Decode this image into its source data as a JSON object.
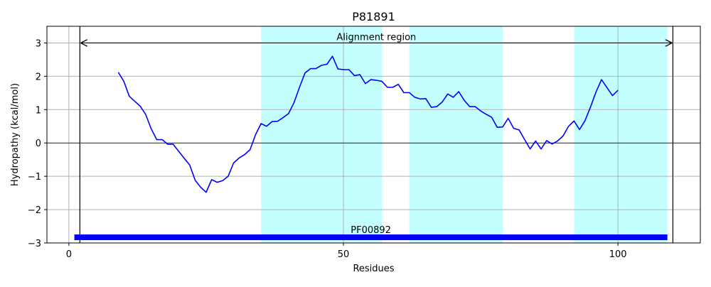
{
  "chart_data": {
    "type": "line",
    "title": "P81891",
    "xlabel": "Residues",
    "ylabel": "Hydropathy (kcal/mol)",
    "xlim": [
      -4,
      115
    ],
    "ylim": [
      -3,
      3.5
    ],
    "xticks": [
      0,
      50,
      100
    ],
    "yticks": [
      -3,
      -2,
      -1,
      0,
      1,
      2,
      3
    ],
    "grid": true,
    "colors": {
      "line": "#0000ff",
      "band": "#c4ffff",
      "domain_bar": "#0000ff",
      "grid": "#b0b0b0",
      "axis": "#000000"
    },
    "series": [
      {
        "x": [
          9,
          10,
          11,
          12,
          13,
          14,
          15,
          16,
          17,
          18,
          19,
          20,
          21,
          22,
          23,
          24,
          25,
          26,
          27,
          28,
          29,
          30,
          31,
          32,
          33,
          34,
          35,
          36,
          37,
          38,
          39,
          40,
          41,
          42,
          43,
          44,
          45,
          46,
          47,
          48,
          49,
          50,
          51,
          52,
          53,
          54,
          55,
          56,
          57,
          58,
          59,
          60,
          61,
          62,
          63,
          64,
          65,
          66,
          67,
          68,
          69,
          70,
          71,
          72,
          73,
          74,
          75,
          76,
          77,
          78,
          79,
          80,
          81,
          82,
          83,
          84,
          85,
          86,
          87,
          88,
          89,
          90,
          91,
          92,
          93,
          94,
          95,
          96,
          97,
          98,
          99,
          100
        ],
        "values": [
          2.12,
          1.85,
          1.4,
          1.25,
          1.1,
          0.85,
          0.42,
          0.1,
          0.1,
          -0.04,
          -0.04,
          -0.25,
          -0.46,
          -0.66,
          -1.12,
          -1.33,
          -1.48,
          -1.1,
          -1.18,
          -1.13,
          -1.0,
          -0.6,
          -0.45,
          -0.35,
          -0.2,
          0.25,
          0.58,
          0.5,
          0.64,
          0.65,
          0.76,
          0.88,
          1.21,
          1.67,
          2.1,
          2.23,
          2.23,
          2.33,
          2.36,
          2.6,
          2.22,
          2.2,
          2.2,
          2.02,
          2.05,
          1.78,
          1.9,
          1.88,
          1.85,
          1.67,
          1.67,
          1.76,
          1.51,
          1.51,
          1.37,
          1.32,
          1.33,
          1.07,
          1.09,
          1.23,
          1.47,
          1.37,
          1.54,
          1.28,
          1.09,
          1.09,
          0.96,
          0.86,
          0.77,
          0.47,
          0.48,
          0.74,
          0.44,
          0.39,
          0.1,
          -0.18,
          0.06,
          -0.18,
          0.07,
          -0.03,
          0.06,
          0.21,
          0.5,
          0.66,
          0.4,
          0.67,
          1.08,
          1.53,
          1.9,
          1.66,
          1.42,
          1.58
        ]
      }
    ],
    "bands": [
      [
        35,
        57
      ],
      [
        62,
        79
      ],
      [
        92,
        109
      ]
    ],
    "alignment": {
      "label": "Alignment region",
      "start": 2,
      "end": 110,
      "y": 3
    },
    "domain": {
      "label": "PF00892",
      "start": 1,
      "end": 109,
      "y": -2.83
    }
  }
}
